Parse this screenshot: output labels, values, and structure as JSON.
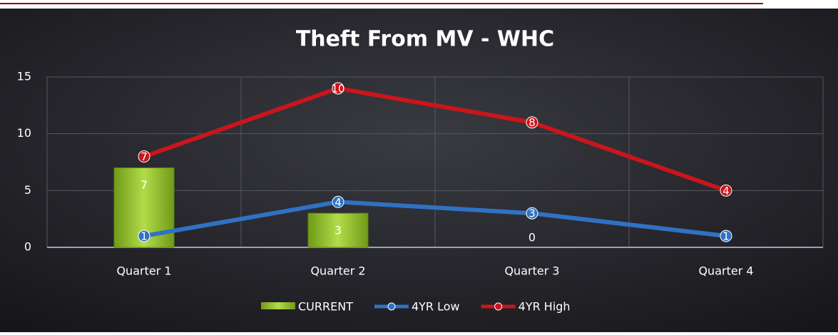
{
  "chart_data": {
    "type": "combo",
    "title": "Theft From MV - WHC",
    "categories": [
      "Quarter 1",
      "Quarter 2",
      "Quarter 3",
      "Quarter 4"
    ],
    "series": [
      {
        "name": "CURRENT",
        "type": "bar",
        "color": "#8fc22c",
        "values": [
          7,
          3,
          0,
          null
        ]
      },
      {
        "name": "4YR Low",
        "type": "line",
        "color": "#2f72c4",
        "values": [
          1,
          4,
          3,
          1
        ]
      },
      {
        "name": "4YR High",
        "type": "line",
        "color": "#c8161c",
        "values": [
          7,
          10,
          8,
          4
        ]
      }
    ],
    "stacked_lines": true,
    "ylim": [
      0,
      15
    ],
    "yticks": [
      0,
      5,
      10,
      15
    ],
    "grid": true,
    "legend": "bottom"
  }
}
